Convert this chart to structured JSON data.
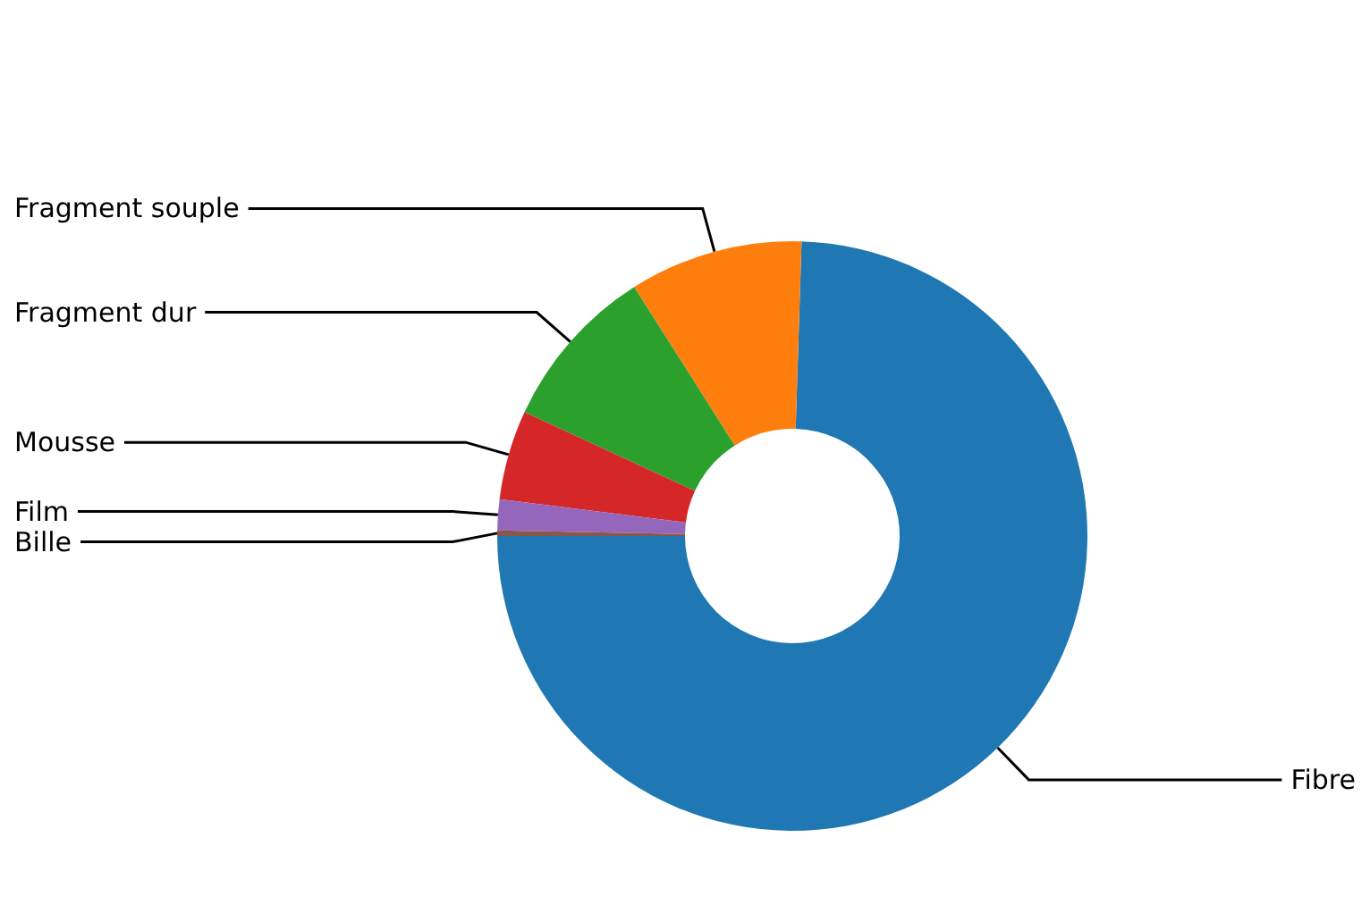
{
  "chart_data": {
    "type": "donut",
    "categories": [
      "Fibre",
      "Fragment souple",
      "Fragment dur",
      "Mousse",
      "Film",
      "Bille"
    ],
    "values": [
      74.5,
      9.5,
      9.1,
      4.9,
      1.7,
      0.3
    ],
    "colors": [
      "#1f77b4",
      "#ff7f0e",
      "#2ca02c",
      "#d62728",
      "#9467bd",
      "#8c564b"
    ],
    "legend": false
  }
}
